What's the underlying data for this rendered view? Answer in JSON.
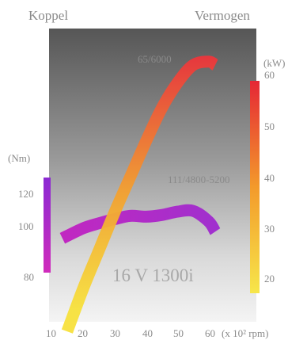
{
  "header": {
    "left_label": "Koppel",
    "right_label": "Vermogen"
  },
  "chart_data": {
    "type": "line",
    "title": "16 V 1300i",
    "x": [
      15,
      20,
      25,
      30,
      35,
      40,
      45,
      50,
      55,
      60
    ],
    "xlabel": "(x 10² rpm)",
    "xlim": [
      10,
      66
    ],
    "x_ticks": [
      "10",
      "20",
      "30",
      "40",
      "50",
      "60"
    ],
    "x_unit_text": "(x 10² rpm)",
    "left_axis": {
      "unit": "(Nm)",
      "ticks": [
        "80",
        "100",
        "120"
      ],
      "range": [
        80,
        125
      ]
    },
    "right_axis": {
      "unit": "(kW)",
      "ticks": [
        "20",
        "30",
        "40",
        "50",
        "60"
      ],
      "range": [
        15,
        62
      ]
    },
    "series": [
      {
        "axis": "right",
        "x": [
          15,
          20,
          25,
          30,
          35,
          40,
          45,
          50,
          55,
          60,
          62
        ],
        "values": [
          9.7,
          18,
          25.5,
          33,
          40,
          47,
          53.5,
          58.5,
          62,
          62.7,
          62
        ],
        "color_start": "#f7e13c",
        "color_end": "#ee2a3c"
      },
      {
        "axis": "left",
        "x": [
          13.5,
          20,
          25,
          30,
          35,
          40,
          45,
          50,
          55,
          60,
          62
        ],
        "values": [
          93,
          99,
          102,
          104.5,
          106.5,
          106,
          107,
          109,
          109.5,
          103,
          97
        ],
        "color_start": "#b91fc4",
        "color_end": "#9a2ad0"
      }
    ],
    "annotations": {
      "power_peak": "65/6000",
      "torque_peak": "111/4800-5200"
    }
  }
}
